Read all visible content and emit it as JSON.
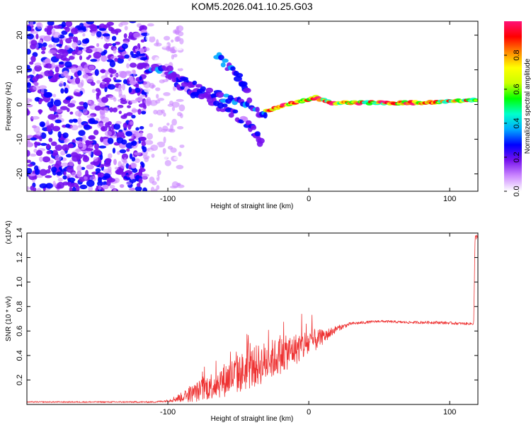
{
  "title": "KOM5.2026.041.10.25.G03",
  "chart_data": [
    {
      "type": "heatmap",
      "name": "spectrogram",
      "xlabel": "Height of straight line (km)",
      "ylabel": "Frequency (Hz)",
      "xlim": [
        -200,
        120
      ],
      "ylim": [
        -25,
        24
      ],
      "x_ticks": [
        -100,
        0,
        100
      ],
      "x_tick_labels": [
        "-100",
        "0",
        "100"
      ],
      "y_ticks": [
        -20,
        -10,
        0,
        10,
        20
      ],
      "y_tick_labels": [
        "-20",
        "-10",
        "0",
        "10",
        "20"
      ],
      "colorbar": {
        "label": "Normalized spectral amplitude",
        "range": [
          0,
          1
        ],
        "ticks": [
          0,
          0.2,
          0.4,
          0.6,
          0.8
        ],
        "tick_labels": [
          "0.0",
          "0.2",
          "0.4",
          "0.6",
          "0.8"
        ],
        "colormap": [
          "#ffffff",
          "#cc88ff",
          "#7711ee",
          "#0000ff",
          "#00aaff",
          "#00ffcc",
          "#00ff00",
          "#ccff00",
          "#ffff00",
          "#ff8800",
          "#ff0000",
          "#ff1177"
        ]
      },
      "features": [
        {
          "name": "noise-field",
          "x_range": [
            -200,
            -115
          ],
          "freq_range": [
            -25,
            24
          ],
          "amplitude": 0.2
        },
        {
          "name": "sparse-noise",
          "x_range": [
            -115,
            -90
          ],
          "freq_range": [
            -25,
            24
          ],
          "amplitude": 0.08
        },
        {
          "name": "trace-upper",
          "points": [
            [
              -115,
              10
            ],
            [
              -100,
              10
            ],
            [
              -90,
              7
            ],
            [
              -75,
              4
            ],
            [
              -60,
              2
            ],
            [
              -45,
              1
            ],
            [
              -35,
              -2
            ],
            [
              -30,
              -3
            ]
          ],
          "amplitude": 0.3
        },
        {
          "name": "trace-lower",
          "points": [
            [
              -100,
              8
            ],
            [
              -85,
              4
            ],
            [
              -70,
              1
            ],
            [
              -55,
              -2
            ],
            [
              -45,
              -5
            ],
            [
              -38,
              -8
            ],
            [
              -33,
              -12
            ]
          ],
          "amplitude": 0.25
        },
        {
          "name": "trace-branch",
          "points": [
            [
              -65,
              14
            ],
            [
              -55,
              10
            ],
            [
              -48,
              7
            ],
            [
              -43,
              4
            ]
          ],
          "amplitude": 0.3
        },
        {
          "name": "trace-main",
          "points": [
            [
              -30,
              -2
            ],
            [
              -15,
              0
            ],
            [
              -5,
              1
            ],
            [
              5,
              2
            ],
            [
              15,
              0.5
            ],
            [
              40,
              0.5
            ],
            [
              80,
              0.5
            ],
            [
              100,
              1
            ],
            [
              120,
              1.5
            ]
          ],
          "amplitude": 0.85
        }
      ]
    },
    {
      "type": "line",
      "name": "snr",
      "xlabel": "Height of straight line (km)",
      "ylabel": "SNR (10 * v/v)",
      "scale_label": "(x10^4)",
      "xlim": [
        -200,
        120
      ],
      "ylim": [
        0,
        1.4
      ],
      "x_ticks": [
        -100,
        0,
        100
      ],
      "x_tick_labels": [
        "-100",
        "0",
        "100"
      ],
      "y_ticks": [
        0.2,
        0.4,
        0.6,
        0.8,
        1.0,
        1.2,
        1.4
      ],
      "y_tick_labels": [
        "0.2",
        "0.4",
        "0.6",
        "0.8",
        "1.0",
        "1.2",
        "1.4"
      ],
      "line_color": "#ee3333",
      "envelope": {
        "x": [
          -200,
          -110,
          -100,
          -90,
          -80,
          -70,
          -60,
          -50,
          -40,
          -30,
          -20,
          -10,
          0,
          10,
          20,
          30,
          50,
          70,
          90,
          110,
          117,
          118,
          120
        ],
        "y": [
          0.02,
          0.02,
          0.03,
          0.06,
          0.1,
          0.15,
          0.2,
          0.25,
          0.3,
          0.35,
          0.4,
          0.45,
          0.5,
          0.55,
          0.62,
          0.66,
          0.68,
          0.67,
          0.67,
          0.66,
          0.66,
          1.36,
          1.38
        ],
        "jitter": [
          0.005,
          0.006,
          0.01,
          0.04,
          0.08,
          0.11,
          0.14,
          0.16,
          0.17,
          0.17,
          0.15,
          0.13,
          0.12,
          0.06,
          0.025,
          0.012,
          0.01,
          0.01,
          0.012,
          0.01,
          0.01,
          0.02,
          0.02
        ]
      }
    }
  ]
}
